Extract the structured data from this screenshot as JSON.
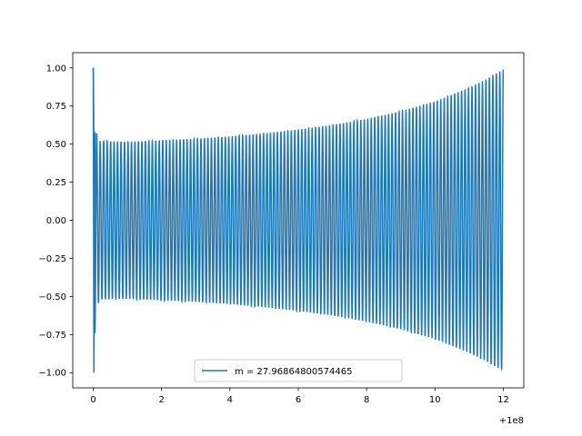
{
  "chart_data": {
    "type": "line",
    "title": "",
    "xlabel": "",
    "ylabel": "",
    "x_offset_label": "+1e8",
    "xlim": [
      -0.6,
      12.6
    ],
    "ylim": [
      -1.1,
      1.1
    ],
    "x_ticks": [
      0,
      2,
      4,
      6,
      8,
      10,
      12
    ],
    "x_tick_labels": [
      "0",
      "2",
      "4",
      "6",
      "8",
      "10",
      "12"
    ],
    "y_ticks": [
      -1.0,
      -0.75,
      -0.5,
      -0.25,
      0.0,
      0.25,
      0.5,
      0.75,
      1.0
    ],
    "y_tick_labels": [
      "−1.00",
      "−0.75",
      "−0.50",
      "−0.25",
      "0.00",
      "0.25",
      "0.50",
      "0.75",
      "1.00"
    ],
    "grid": false,
    "legend_position": "lower-center",
    "series": [
      {
        "name": "m = 27.96864800574465",
        "color": "#1f77b4",
        "x_start": 0,
        "x_end": 12,
        "cycles": 118,
        "envelope": [
          [
            0.0,
            1.0
          ],
          [
            0.08,
            0.58
          ],
          [
            0.2,
            0.52
          ],
          [
            1,
            0.515
          ],
          [
            2,
            0.525
          ],
          [
            3,
            0.535
          ],
          [
            4,
            0.55
          ],
          [
            5,
            0.57
          ],
          [
            6,
            0.595
          ],
          [
            7,
            0.625
          ],
          [
            8,
            0.665
          ],
          [
            9,
            0.715
          ],
          [
            10,
            0.78
          ],
          [
            11,
            0.87
          ],
          [
            11.5,
            0.925
          ],
          [
            12,
            0.99
          ]
        ]
      }
    ]
  }
}
